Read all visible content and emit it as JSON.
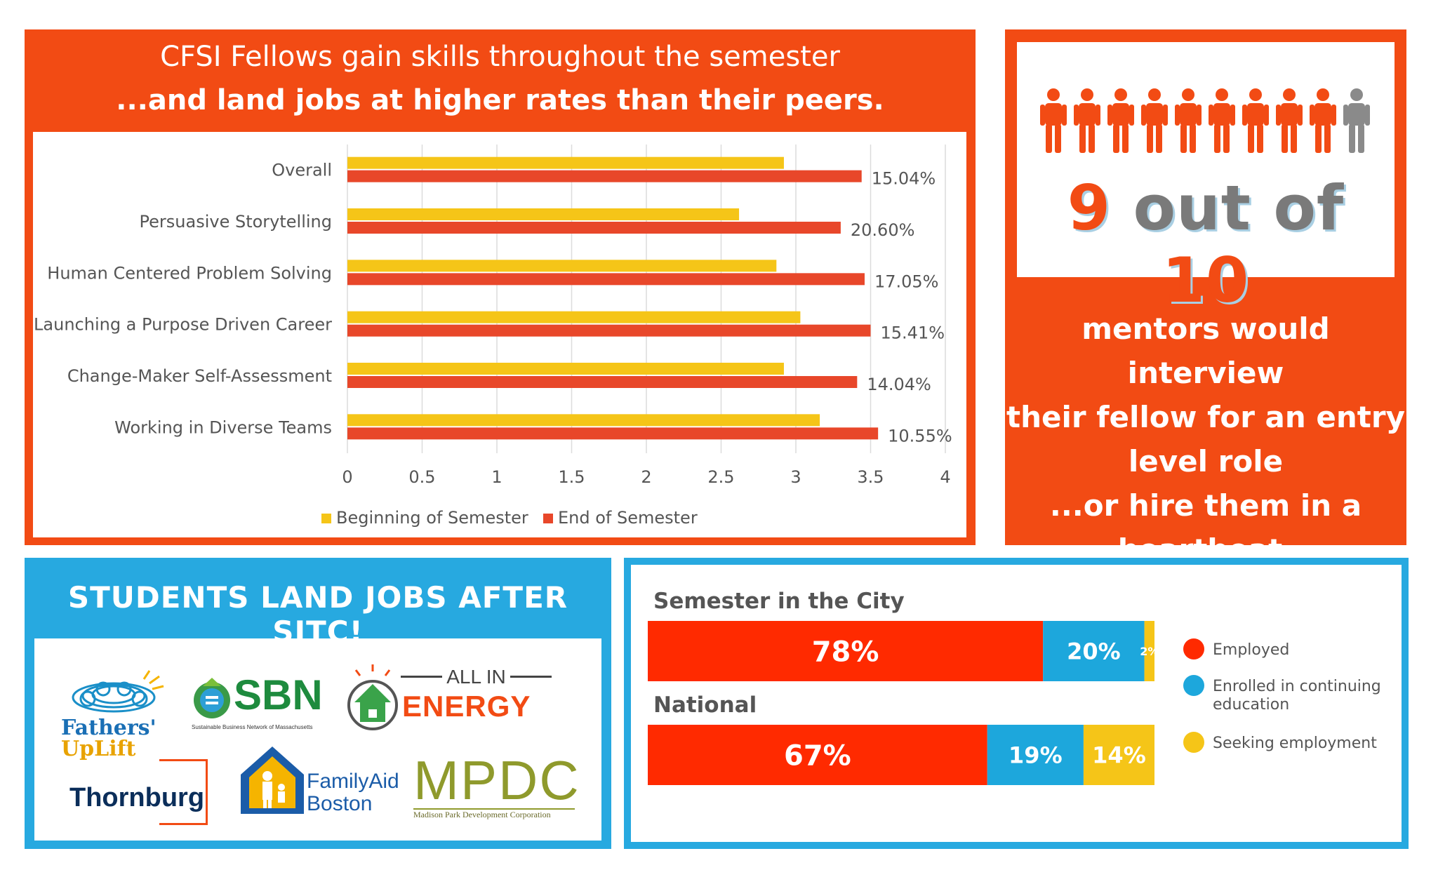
{
  "top_left": {
    "title_line1": "CFSI Fellows gain skills throughout the semester",
    "title_line2": "...and land jobs at higher rates than their peers."
  },
  "top_right": {
    "stat_number": "9",
    "stat_middle": "out of",
    "stat_total": "10",
    "people_total": 10,
    "people_highlight": 9,
    "text_lines": [
      "mentors would interview",
      "their fellow for an entry",
      "level role",
      "...or hire them in a",
      "heartbeat."
    ]
  },
  "bottom_left": {
    "title": "STUDENTS LAND JOBS AFTER SITC!",
    "logos": {
      "fathers_line1": "Fathers'",
      "fathers_line2": "UpLift",
      "sbn": "SBN",
      "sbn_sub": "Sustainable Business Network of Massachusetts",
      "allin_line1": "ALL IN",
      "allin_line2": "ENERGY",
      "thornburg": "Thornburg",
      "familyaid_line1": "FamilyAid",
      "familyaid_line2": "Boston",
      "mpdc": "MPDC",
      "mpdc_sub": "Madison Park Development Corporation"
    }
  },
  "colors": {
    "orange": "#f24b14",
    "blue": "#27a9e0",
    "beginning": "#f5c518",
    "end": "#e8472a",
    "employed": "#ff2a00",
    "enrolled": "#1da7dc",
    "seeking": "#f5c518",
    "person_highlight": "#f24b14",
    "person_other": "#8a8a8a"
  },
  "chart_data": [
    {
      "type": "bar",
      "orientation": "horizontal",
      "categories": [
        "Overall",
        "Persuasive Storytelling",
        "Human Centered Problem Solving",
        "Launching a Purpose Driven Career",
        "Change-Maker Self-Assessment",
        "Working in Diverse Teams"
      ],
      "series": [
        {
          "name": "Beginning of Semester",
          "values": [
            2.92,
            2.62,
            2.87,
            3.03,
            2.92,
            3.16
          ]
        },
        {
          "name": "End of Semester",
          "values": [
            3.44,
            3.3,
            3.46,
            3.5,
            3.41,
            3.55
          ]
        }
      ],
      "data_labels": [
        "15.04%",
        "20.60%",
        "17.05%",
        "15.41%",
        "14.04%",
        "10.55%"
      ],
      "xlim": [
        0,
        4
      ],
      "xticks": [
        "0",
        "0.5",
        "1",
        "1.5",
        "2",
        "2.5",
        "3",
        "3.5",
        "4"
      ],
      "legend_position": "bottom",
      "grid": true
    },
    {
      "type": "bar",
      "orientation": "horizontal",
      "stacked": true,
      "categories": [
        "Semester in the City",
        "National"
      ],
      "series": [
        {
          "name": "Employed",
          "values": [
            78,
            67
          ]
        },
        {
          "name": "Enrolled in continuing education",
          "values": [
            20,
            19
          ]
        },
        {
          "name": "Seeking employment",
          "values": [
            2,
            14
          ]
        }
      ],
      "value_labels": [
        [
          "78%",
          "20%",
          "2%"
        ],
        [
          "67%",
          "19%",
          "14%"
        ]
      ],
      "legend_position": "right"
    }
  ]
}
